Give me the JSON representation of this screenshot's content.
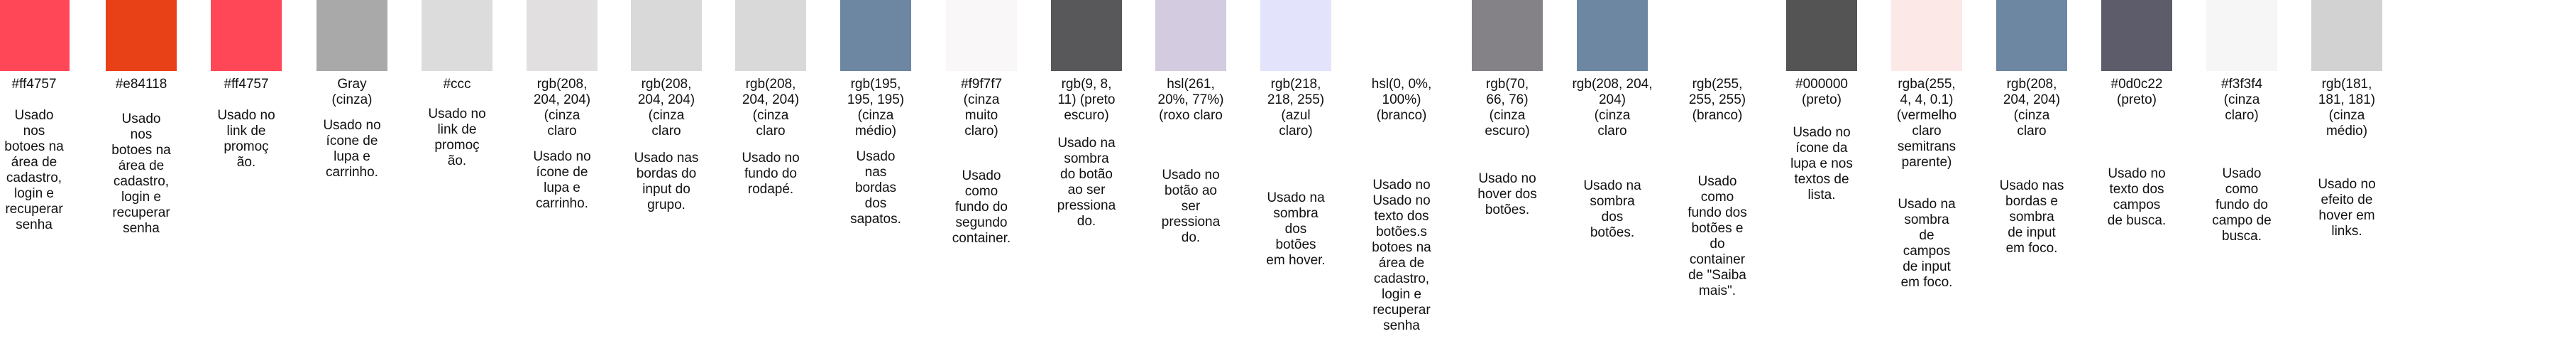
{
  "swatches": [
    {
      "color": "#ff4757",
      "code": "#ff4757",
      "description": "Usado\nnos\nbotoes na\nárea de\ncadastro,\nlogin e\nrecuperar\nsenha"
    },
    {
      "color": "#e84118",
      "code": "#e84118",
      "description": "Usado\nnos\nbotoes na\nárea de\ncadastro,\nlogin e\nrecuperar\nsenha"
    },
    {
      "color": "#ff4757",
      "code": "#ff4757",
      "description": "Usado no\nlink de\npromoç\não."
    },
    {
      "color": "#a9a9a9",
      "code": "Gray\n(cinza)",
      "description": "Usado no\nícone de\nlupa e\ncarrinho."
    },
    {
      "color": "#dcdcdc",
      "code": "#ccc",
      "description": "Usado no\nlink de\npromoç\não."
    },
    {
      "color": "#e2dfe0",
      "code": "rgb(208,\n204, 204)\n(cinza\nclaro",
      "description": "Usado no\nícone de\nlupa e\ncarrinho."
    },
    {
      "color": "#d9d9d9",
      "code": "rgb(208,\n204, 204)\n(cinza\nclaro",
      "description": "Usado nas\nbordas do\ninput do\ngrupo."
    },
    {
      "color": "#d9d9d9",
      "code": "rgb(208,\n204, 204)\n(cinza\nclaro",
      "description": "Usado no\nfundo do\nrodapé."
    },
    {
      "color": "#6d87a3",
      "code": "rgb(195,\n195, 195)\n(cinza\nmédio)",
      "description": "Usado\nnas\nbordas\ndos\nsapatos."
    },
    {
      "color": "#f9f7f7",
      "code": "#f9f7f7\n(cinza\nmuito\nclaro)",
      "description": "Usado\ncomo\nfundo do\nsegundo\ncontainer."
    },
    {
      "color": "#58585a",
      "code": "rgb(9, 8,\n11) (preto\nescuro)",
      "description": "Usado na\nsombra\ndo botão\nao ser\npressiona\ndo."
    },
    {
      "color": "#d3cbdf",
      "code": "hsl(261,\n20%, 77%)\n(roxo claro",
      "description": "Usado no\nbotão ao\nser\npressiona\ndo."
    },
    {
      "color": "#e3e3fb",
      "code": "rgb(218,\n218, 255)\n(azul\nclaro)",
      "description": "Usado na\nsombra\ndos\nbotões\nem hover."
    },
    {
      "color": "#ffffff",
      "code": "hsl(0, 0%,\n100%)\n(branco)",
      "description": "Usado no\nUsado no\ntexto dos\nbotões.s\nbotoes na\nárea de\ncadastro,\nlogin e\nrecuperar\nsenha"
    },
    {
      "color": "#848187",
      "code": "rgb(70,\n66, 76)\n(cinza\nescuro)",
      "description": "Usado no\nhover dos\nbotões."
    },
    {
      "color": "#6d87a3",
      "code": "rgb(208, 204, 204)\n(cinza\nclaro",
      "description": "Usado na\nsombra\ndos\nbotões."
    },
    {
      "color": "#ffffff",
      "code": "rgb(255,\n255, 255)\n(branco)",
      "description": "Usado\ncomo\nfundo dos\nbotões e\ndo\ncontainer\nde \"Saiba\nmais\"."
    },
    {
      "color": "#545454",
      "code": "#000000\n(preto)",
      "description": "Usado no\nícone da\nlupa e nos\ntextos de\nlista."
    },
    {
      "color": "#fde8e8",
      "code": "rgba(255,\n4, 4, 0.1)\n(vermelho\nclaro\nsemitrans\nparente)",
      "description": "Usado na\nsombra\nde\ncampos\nde input\nem foco."
    },
    {
      "color": "#6d87a3",
      "code": "rgb(208,\n204, 204)\n(cinza\nclaro",
      "description": "Usado nas\nbordas e\nsombra\nde input\nem foco."
    },
    {
      "color": "#5c5c6b",
      "code": "#0d0c22\n(preto)",
      "description": "Usado no\ntexto dos\ncampos\nde busca."
    },
    {
      "color": "#f6f6f6",
      "code": "#f3f3f4\n(cinza\nclaro)",
      "description": "Usado\ncomo\nfundo do\ncampo de\nbusca."
    },
    {
      "color": "#d2d2d2",
      "code": "rgb(181,\n181, 181)\n(cinza\nmédio)",
      "description": "Usado no\nefeito de\nhover em\nlinks."
    }
  ]
}
